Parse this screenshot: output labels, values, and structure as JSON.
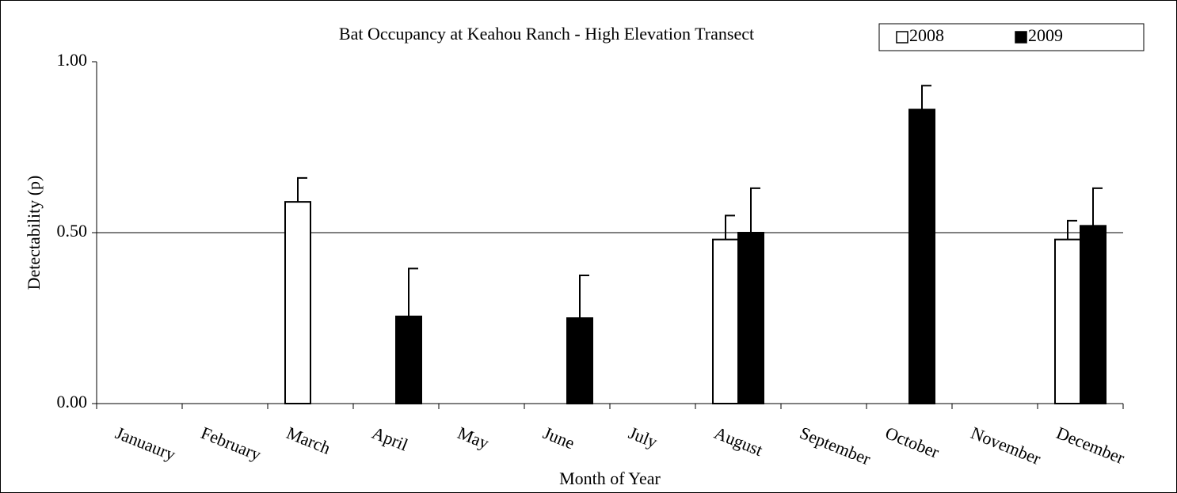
{
  "chart_data": {
    "type": "bar",
    "title": "Bat Occupancy at Keahou Ranch - High Elevation Transect",
    "xlabel": "Month of Year",
    "ylabel": "Detectability (p)",
    "categories": [
      "Januaury",
      "February",
      "March",
      "April",
      "May",
      "June",
      "July",
      "August",
      "September",
      "October",
      "November",
      "December"
    ],
    "series": [
      {
        "name": "2008",
        "color": "#ffffff",
        "values": [
          null,
          null,
          0.59,
          null,
          null,
          null,
          null,
          0.48,
          null,
          null,
          null,
          0.48
        ],
        "errors": [
          null,
          null,
          0.07,
          null,
          null,
          null,
          null,
          0.07,
          null,
          null,
          null,
          0.055
        ]
      },
      {
        "name": "2009",
        "color": "#000000",
        "values": [
          null,
          null,
          null,
          0.255,
          null,
          0.25,
          null,
          0.5,
          null,
          0.86,
          null,
          0.52
        ],
        "errors": [
          null,
          null,
          null,
          0.14,
          null,
          0.125,
          null,
          0.13,
          null,
          0.07,
          null,
          0.11
        ]
      }
    ],
    "ylim": [
      0,
      1
    ],
    "yticks": [
      {
        "value": 0,
        "label": "0.00"
      },
      {
        "value": 0.5,
        "label": "0.50"
      },
      {
        "value": 1,
        "label": "1.00"
      }
    ],
    "grid": true,
    "legend": "top-right"
  }
}
